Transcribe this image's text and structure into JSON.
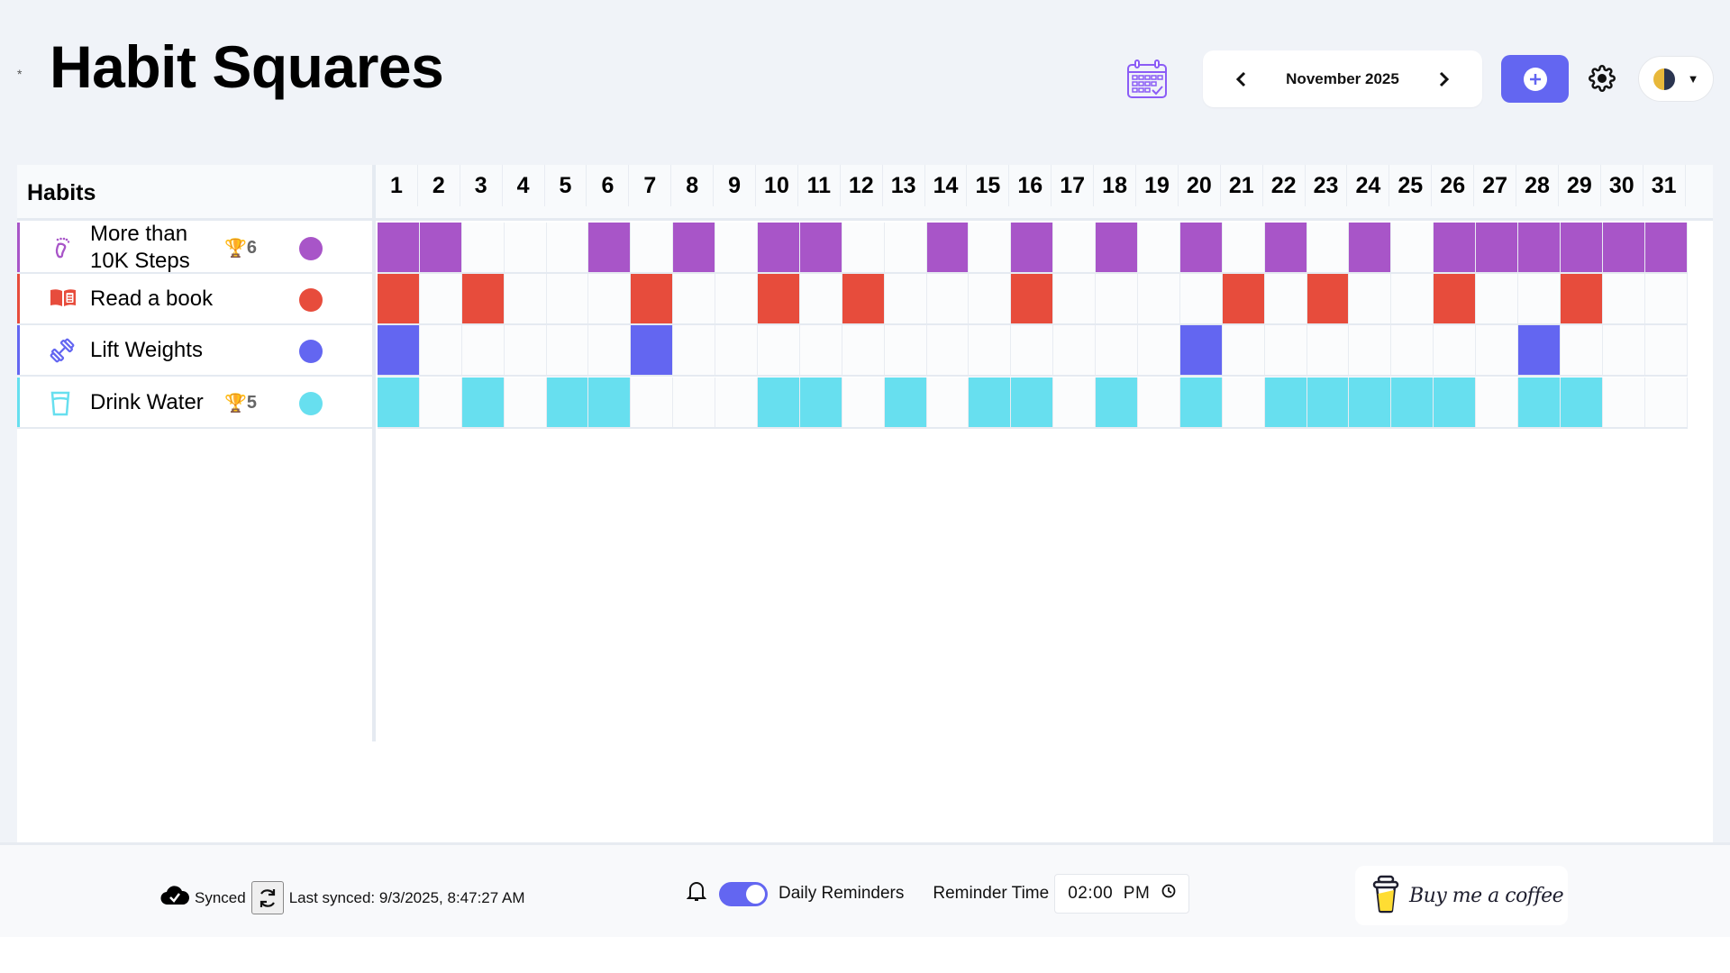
{
  "header": {
    "asterisk": "*",
    "title": "Habit Squares",
    "month_label": "November 2025",
    "icons": {
      "calendar": "calendar-check-icon",
      "prev": "chevron-left-icon",
      "next": "chevron-right-icon",
      "add": "plus-circle-icon",
      "settings": "gear-icon",
      "theme": "half-moon-icon",
      "theme_caret": "▼"
    }
  },
  "table": {
    "habits_header": "Habits",
    "days": [
      "1",
      "2",
      "3",
      "4",
      "5",
      "6",
      "7",
      "8",
      "9",
      "10",
      "11",
      "12",
      "13",
      "14",
      "15",
      "16",
      "17",
      "18",
      "19",
      "20",
      "21",
      "22",
      "23",
      "24",
      "25",
      "26",
      "27",
      "28",
      "29",
      "30",
      "31"
    ],
    "habits": [
      {
        "name": "More than 10K Steps",
        "icon": "footprint-icon",
        "color": "#a855c8",
        "streak_icon": "🏆",
        "streak": "6",
        "completed": [
          1,
          2,
          6,
          8,
          10,
          11,
          14,
          16,
          18,
          20,
          22,
          24,
          26,
          27,
          28,
          29,
          30,
          31
        ]
      },
      {
        "name": "Read a book",
        "icon": "book-open-icon",
        "color": "#e74c3c",
        "streak_icon": "",
        "streak": "",
        "completed": [
          1,
          3,
          7,
          10,
          12,
          16,
          21,
          23,
          26,
          29
        ]
      },
      {
        "name": "Lift Weights",
        "icon": "dumbbell-icon",
        "color": "#6366f1",
        "streak_icon": "",
        "streak": "",
        "completed": [
          1,
          7,
          20,
          28
        ]
      },
      {
        "name": "Drink Water",
        "icon": "glass-water-icon",
        "color": "#67dfef",
        "streak_icon": "🏆",
        "streak": "5",
        "completed": [
          1,
          3,
          5,
          6,
          10,
          11,
          13,
          15,
          16,
          18,
          20,
          22,
          23,
          24,
          25,
          26,
          28,
          29
        ]
      }
    ]
  },
  "footer": {
    "sync_status": "Synced",
    "last_synced": "Last synced: 9/3/2025, 8:47:27 AM",
    "reminders_label": "Daily Reminders",
    "reminders_enabled": true,
    "reminder_time_label": "Reminder Time",
    "reminder_time_value": "02:00  PM",
    "coffee_label": "Buy me a coffee"
  },
  "colors": {
    "accent": "#6366f1",
    "page_bg": "#f0f3f8",
    "empty_cell": "#fbfcfd"
  }
}
